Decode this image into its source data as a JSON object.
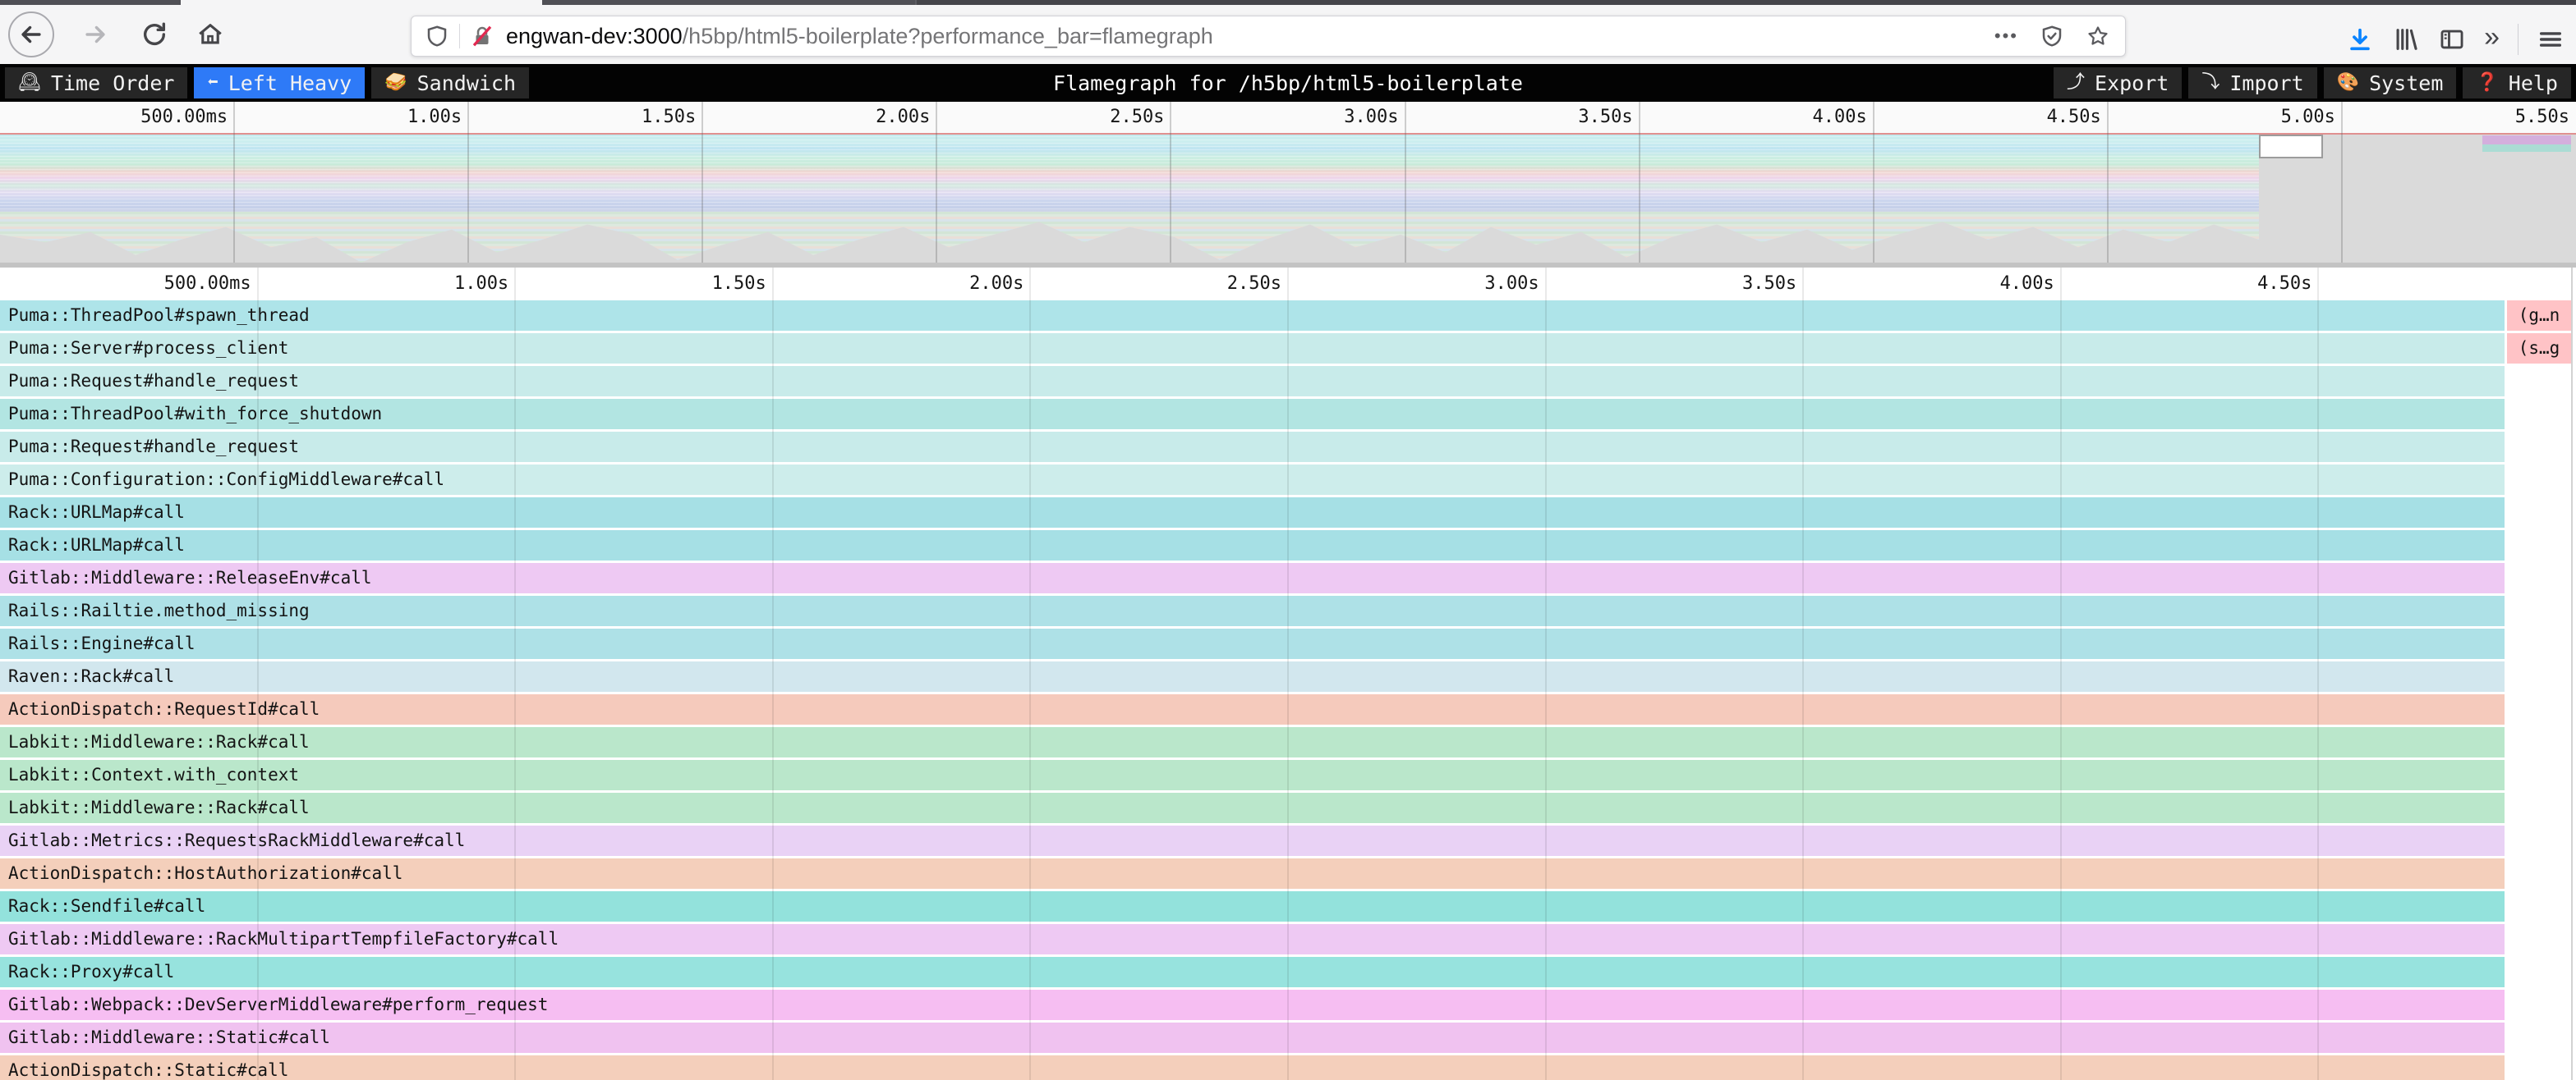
{
  "browser": {
    "url": {
      "host": "engwan-dev:3000",
      "rest": "/h5bp/html5-boilerplate?performance_bar=flamegraph"
    },
    "page_actions_glyph": "•••",
    "overflow_chevrons": "»"
  },
  "flamegraph_toolbar": {
    "title": "Flamegraph for /h5bp/html5-boilerplate",
    "active_view": "Left Heavy",
    "views": [
      {
        "icon": "🕰",
        "icon_name": "clock-icon",
        "label": "Time Order"
      },
      {
        "icon": "⬅",
        "icon_name": "left-arrow-icon",
        "label": "Left Heavy"
      },
      {
        "icon": "🥪",
        "icon_name": "sandwich-icon",
        "label": "Sandwich"
      }
    ],
    "actions": [
      {
        "icon": "⤴",
        "icon_name": "export-icon",
        "label": "Export"
      },
      {
        "icon": "⤵",
        "icon_name": "import-icon",
        "label": "Import"
      },
      {
        "icon": "🎨",
        "icon_name": "palette-icon",
        "label": "System"
      },
      {
        "icon": "❓",
        "icon_name": "help-icon",
        "label": "Help"
      }
    ]
  },
  "minimap": {
    "ticks": [
      "500.00ms",
      "1.00s",
      "1.50s",
      "2.00s",
      "2.50s",
      "3.00s",
      "3.50s",
      "4.00s",
      "4.50s",
      "5.00s",
      "5.50s"
    ]
  },
  "main_view": {
    "ticks": [
      "500.00ms",
      "1.00s",
      "1.50s",
      "2.00s",
      "2.50s",
      "3.00s",
      "3.50s",
      "4.00s",
      "4.50s"
    ]
  },
  "frames": [
    {
      "label": "Puma::ThreadPool#spawn_thread",
      "color": "#aee4e9",
      "right": {
        "label": "(g…n",
        "color": "#ffc3c6"
      }
    },
    {
      "label": "Puma::Server#process_client",
      "color": "#c8ebea",
      "right": {
        "label": "(s…g",
        "color": "#ffc3c6"
      }
    },
    {
      "label": "Puma::Request#handle_request",
      "color": "#c8ebea"
    },
    {
      "label": "Puma::ThreadPool#with_force_shutdown",
      "color": "#b2e5e2"
    },
    {
      "label": "Puma::Request#handle_request",
      "color": "#c8ebea"
    },
    {
      "label": "Puma::Configuration::ConfigMiddleware#call",
      "color": "#cdedeb"
    },
    {
      "label": "Rack::URLMap#call",
      "color": "#a6e0e5"
    },
    {
      "label": "Rack::URLMap#call",
      "color": "#a6e0e5"
    },
    {
      "label": "Gitlab::Middleware::ReleaseEnv#call",
      "color": "#eec9f3"
    },
    {
      "label": "Rails::Railtie.method_missing",
      "color": "#aee1e7"
    },
    {
      "label": "Rails::Engine#call",
      "color": "#aee1e7"
    },
    {
      "label": "Raven::Rack#call",
      "color": "#d2e7ee"
    },
    {
      "label": "ActionDispatch::RequestId#call",
      "color": "#f5cabc"
    },
    {
      "label": "Labkit::Middleware::Rack#call",
      "color": "#bae7cb"
    },
    {
      "label": "Labkit::Context.with_context",
      "color": "#bae7cb"
    },
    {
      "label": "Labkit::Middleware::Rack#call",
      "color": "#bae7cb"
    },
    {
      "label": "Gitlab::Metrics::RequestsRackMiddleware#call",
      "color": "#e9d2f5"
    },
    {
      "label": "ActionDispatch::HostAuthorization#call",
      "color": "#f4cfbb"
    },
    {
      "label": "Rack::Sendfile#call",
      "color": "#93e2dc"
    },
    {
      "label": "Gitlab::Middleware::RackMultipartTempfileFactory#call",
      "color": "#eec9f3"
    },
    {
      "label": "Rack::Proxy#call",
      "color": "#97e3de"
    },
    {
      "label": "Gitlab::Webpack::DevServerMiddleware#perform_request",
      "color": "#f6bef2"
    },
    {
      "label": "Gitlab::Middleware::Static#call",
      "color": "#f0c2f0"
    },
    {
      "label": "ActionDispatch::Static#call",
      "color": "#f4cfbb"
    }
  ],
  "colors": {
    "active_view_bg": "#2e7af7",
    "toolbar_bg": "#030303",
    "button_bg": "#262626",
    "download_accent": "#0a84ff",
    "lock_slash": "#e22850"
  }
}
